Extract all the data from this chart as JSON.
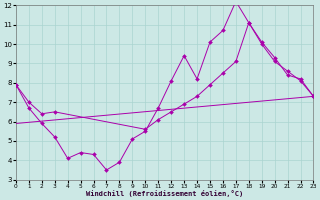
{
  "xlabel": "Windchill (Refroidissement éolien,°C)",
  "xlim": [
    0,
    23
  ],
  "ylim": [
    3,
    12
  ],
  "yticks": [
    3,
    4,
    5,
    6,
    7,
    8,
    9,
    10,
    11,
    12
  ],
  "xticks": [
    0,
    1,
    2,
    3,
    4,
    5,
    6,
    7,
    8,
    9,
    10,
    11,
    12,
    13,
    14,
    15,
    16,
    17,
    18,
    19,
    20,
    21,
    22,
    23
  ],
  "bg_color": "#cce8e5",
  "grid_color": "#aad4d0",
  "line_color": "#aa00aa",
  "line1_x": [
    0,
    1,
    2,
    3,
    4,
    5,
    6,
    7,
    8,
    9,
    10,
    11,
    12,
    13,
    14,
    15,
    16,
    17,
    18,
    19,
    20,
    21,
    22,
    23
  ],
  "line1_y": [
    7.9,
    6.7,
    5.9,
    5.2,
    4.1,
    4.4,
    4.3,
    3.5,
    3.9,
    5.1,
    5.5,
    6.7,
    8.1,
    9.4,
    8.2,
    10.1,
    10.7,
    12.2,
    11.1,
    10.1,
    9.3,
    8.4,
    8.2,
    7.3
  ],
  "line2_x": [
    0,
    1,
    2,
    3,
    10,
    11,
    12,
    13,
    14,
    15,
    16,
    17,
    18,
    19,
    20,
    21,
    22,
    23
  ],
  "line2_y": [
    7.9,
    7.0,
    6.4,
    6.5,
    5.6,
    6.1,
    6.5,
    6.9,
    7.3,
    7.9,
    8.5,
    9.1,
    11.1,
    10.0,
    9.1,
    8.6,
    8.1,
    7.3
  ],
  "line3_x": [
    0,
    23
  ],
  "line3_y": [
    5.9,
    7.3
  ]
}
